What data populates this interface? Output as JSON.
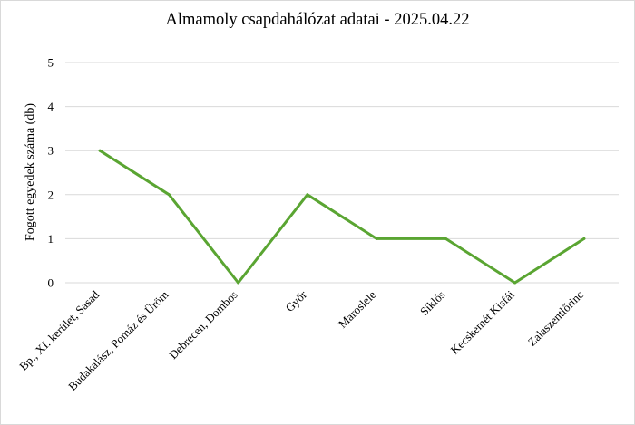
{
  "chart_data": {
    "type": "line",
    "title": "Almamoly csapdahálózat adatai - 2025.04.22",
    "xlabel": "",
    "ylabel": "Fogott egyedek száma (db)",
    "categories": [
      "Bp., XI. kerület, Sasad",
      "Budakalász, Pomáz és Üröm",
      "Debrecen, Dombos",
      "Győr",
      "Maroslele",
      "Siklós",
      "Kecskemét Kisfái",
      "Zalaszentlőrinc"
    ],
    "values": [
      3,
      2,
      0,
      2,
      1,
      1,
      0,
      1
    ],
    "ylim": [
      0,
      5
    ],
    "yticks": [
      0,
      1,
      2,
      3,
      4,
      5
    ],
    "grid": true,
    "legend": "none",
    "line_color": "#5aa532",
    "grid_color": "#d9d9d9"
  }
}
